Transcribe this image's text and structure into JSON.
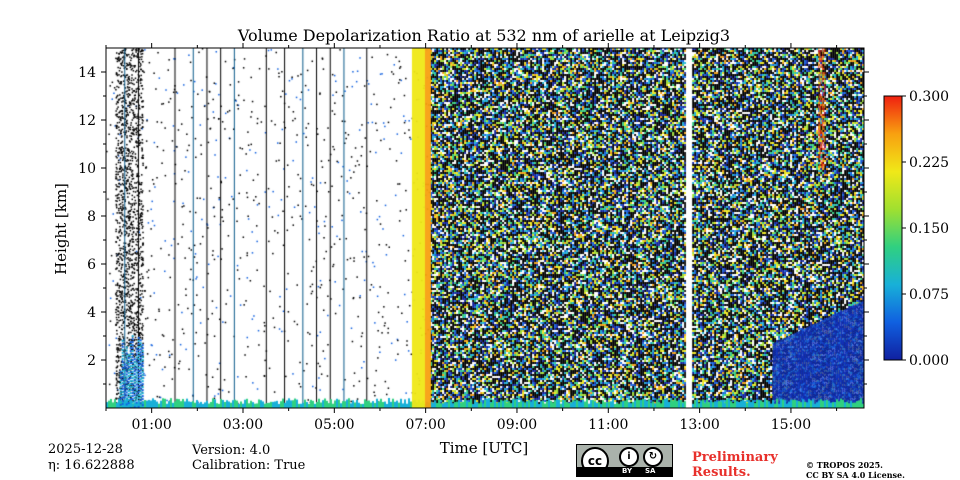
{
  "chart_data": {
    "type": "heatmap",
    "title": "Volume Depolarization Ratio at 532 nm of arielle at Leipzig3",
    "xlabel": "Time [UTC]",
    "ylabel": "Height [km]",
    "x_range_hours": [
      0.0,
      16.6
    ],
    "ylim": [
      0,
      15
    ],
    "x_ticks": [
      "01:00",
      "03:00",
      "05:00",
      "07:00",
      "09:00",
      "11:00",
      "13:00",
      "15:00"
    ],
    "x_tick_hours": [
      1,
      3,
      5,
      7,
      9,
      11,
      13,
      15
    ],
    "y_ticks": [
      2,
      4,
      6,
      8,
      10,
      12,
      14
    ],
    "colorbar": {
      "ticks": [
        "0.000",
        "0.075",
        "0.150",
        "0.225",
        "0.300"
      ],
      "vmin": 0.0,
      "vmax": 0.3,
      "colormap": [
        "#1020a0",
        "#1060e0",
        "#18b0d8",
        "#30d080",
        "#a0e030",
        "#f0e818",
        "#f8a010",
        "#f02010"
      ]
    },
    "features": {
      "vertical_profile_gaps_hours": [
        0.4,
        0.7,
        1.5,
        1.9,
        2.2,
        2.5,
        2.8,
        3.5,
        3.9,
        4.3,
        4.6,
        4.9,
        5.2,
        5.7
      ],
      "high_depol_band_hours": [
        6.7,
        7.1
      ],
      "data_gap_hours": [
        12.7,
        12.8
      ],
      "noise_region_hours": [
        7.1,
        16.6
      ],
      "aerosol_layer_top_km": 4.5,
      "aerosol_layer_start_hours": 14.6
    }
  },
  "footer": {
    "date": "2025-12-28",
    "eta": "η: 16.622888",
    "version": "Version: 4.0",
    "calibration": "Calibration: True",
    "license_badge": {
      "by": "BY",
      "sa": "SA",
      "cc": "cc"
    },
    "preliminary": [
      "Preliminary",
      "Results."
    ],
    "copyright": [
      "© TROPOS 2025.",
      "CC BY SA 4.0 License."
    ]
  },
  "colors": {
    "accent_red": "#e8302b",
    "axis": "#000000"
  }
}
